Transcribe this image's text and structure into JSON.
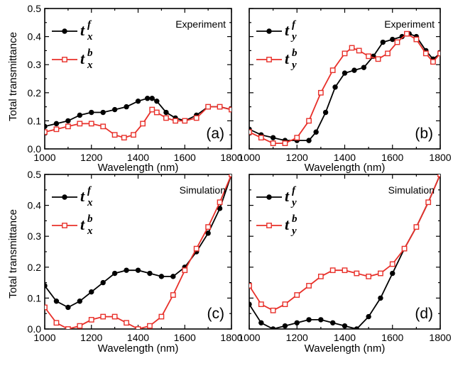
{
  "figure": {
    "ylabel": "Total transmittance",
    "xlabel": "Wavelength (nm)"
  },
  "colors": {
    "front": "#000000",
    "back": "#e8302a"
  },
  "chart_data": [
    {
      "type": "line",
      "panel_label": "(a)",
      "annotation": "Experiment",
      "xlabel": "Wavelength (nm)",
      "ylabel": "Total transmittance",
      "xlim": [
        1000,
        1800
      ],
      "ylim": [
        0.0,
        0.5
      ],
      "xticks": [
        "1000",
        "1200",
        "1400",
        "1600",
        "1800"
      ],
      "yticks": [
        "0.0",
        "0.1",
        "0.2",
        "0.3",
        "0.4",
        "0.5"
      ],
      "legend_placement": "top-left",
      "series": [
        {
          "name": "t_x^f",
          "symbol": "t",
          "sub": "x",
          "sup": "f",
          "marker": "filled-circle",
          "color": "#000000",
          "x": [
            1000,
            1050,
            1100,
            1150,
            1200,
            1250,
            1300,
            1350,
            1400,
            1440,
            1460,
            1480,
            1520,
            1560,
            1600,
            1650,
            1700,
            1750,
            1800
          ],
          "y": [
            0.08,
            0.09,
            0.1,
            0.12,
            0.13,
            0.13,
            0.14,
            0.15,
            0.17,
            0.18,
            0.18,
            0.17,
            0.13,
            0.11,
            0.1,
            0.12,
            0.15,
            0.15,
            0.14
          ]
        },
        {
          "name": "t_x^b",
          "symbol": "t",
          "sub": "x",
          "sup": "b",
          "marker": "open-square",
          "color": "#e8302a",
          "x": [
            1000,
            1050,
            1100,
            1150,
            1200,
            1250,
            1300,
            1340,
            1380,
            1420,
            1460,
            1480,
            1520,
            1560,
            1600,
            1650,
            1700,
            1750,
            1800
          ],
          "y": [
            0.06,
            0.07,
            0.08,
            0.09,
            0.09,
            0.08,
            0.05,
            0.04,
            0.05,
            0.09,
            0.14,
            0.13,
            0.11,
            0.1,
            0.1,
            0.11,
            0.15,
            0.15,
            0.14
          ]
        }
      ]
    },
    {
      "type": "line",
      "panel_label": "(b)",
      "annotation": "Experiment",
      "xlabel": "Wavelength (nm)",
      "xlim": [
        1000,
        1800
      ],
      "ylim": [
        0.0,
        0.5
      ],
      "xticks": [
        "1000",
        "1200",
        "1400",
        "1600",
        "1800"
      ],
      "legend_placement": "top-left",
      "series": [
        {
          "name": "t_y^f",
          "symbol": "t",
          "sub": "y",
          "sup": "f",
          "marker": "filled-circle",
          "color": "#000000",
          "x": [
            1000,
            1050,
            1100,
            1150,
            1200,
            1250,
            1280,
            1320,
            1360,
            1400,
            1440,
            1480,
            1520,
            1560,
            1600,
            1640,
            1670,
            1700,
            1740,
            1770,
            1800
          ],
          "y": [
            0.07,
            0.05,
            0.04,
            0.03,
            0.03,
            0.03,
            0.06,
            0.13,
            0.22,
            0.27,
            0.28,
            0.29,
            0.33,
            0.38,
            0.39,
            0.4,
            0.41,
            0.4,
            0.35,
            0.32,
            0.34
          ]
        },
        {
          "name": "t_y^b",
          "symbol": "t",
          "sub": "y",
          "sup": "b",
          "marker": "open-square",
          "color": "#e8302a",
          "x": [
            1000,
            1050,
            1100,
            1150,
            1200,
            1250,
            1300,
            1350,
            1400,
            1430,
            1460,
            1500,
            1540,
            1580,
            1620,
            1660,
            1700,
            1740,
            1770,
            1800
          ],
          "y": [
            0.06,
            0.04,
            0.02,
            0.02,
            0.04,
            0.1,
            0.2,
            0.28,
            0.34,
            0.36,
            0.35,
            0.33,
            0.32,
            0.34,
            0.38,
            0.41,
            0.39,
            0.34,
            0.31,
            0.34
          ]
        }
      ]
    },
    {
      "type": "line",
      "panel_label": "(c)",
      "annotation": "Simulation",
      "xlabel": "Wavelength (nm)",
      "ylabel": "Total transmittance",
      "xlim": [
        1000,
        1800
      ],
      "ylim": [
        0.0,
        0.5
      ],
      "xticks": [
        "1000",
        "1200",
        "1400",
        "1600",
        "1800"
      ],
      "yticks": [
        "0.0",
        "0.1",
        "0.2",
        "0.3",
        "0.4",
        "0.5"
      ],
      "legend_placement": "top-left",
      "series": [
        {
          "name": "t_x^f",
          "symbol": "t",
          "sub": "x",
          "sup": "f",
          "marker": "filled-circle",
          "color": "#000000",
          "x": [
            1000,
            1050,
            1100,
            1150,
            1200,
            1250,
            1300,
            1350,
            1400,
            1450,
            1500,
            1550,
            1600,
            1650,
            1700,
            1750,
            1800
          ],
          "y": [
            0.14,
            0.09,
            0.07,
            0.09,
            0.12,
            0.15,
            0.18,
            0.19,
            0.19,
            0.18,
            0.17,
            0.17,
            0.2,
            0.25,
            0.31,
            0.39,
            0.5
          ]
        },
        {
          "name": "t_x^b",
          "symbol": "t",
          "sub": "x",
          "sup": "b",
          "marker": "open-square",
          "color": "#e8302a",
          "x": [
            1000,
            1050,
            1100,
            1150,
            1200,
            1250,
            1300,
            1350,
            1400,
            1450,
            1500,
            1550,
            1600,
            1650,
            1700,
            1750,
            1800
          ],
          "y": [
            0.07,
            0.02,
            0.0,
            0.01,
            0.03,
            0.04,
            0.04,
            0.02,
            0.0,
            0.01,
            0.04,
            0.11,
            0.19,
            0.26,
            0.33,
            0.41,
            0.5
          ]
        }
      ]
    },
    {
      "type": "line",
      "panel_label": "(d)",
      "annotation": "Simulation",
      "xlabel": "Wavelength (nm)",
      "xlim": [
        1000,
        1800
      ],
      "ylim": [
        0.0,
        0.5
      ],
      "xticks": [
        "1000",
        "1200",
        "1400",
        "1600",
        "1800"
      ],
      "legend_placement": "top-left",
      "series": [
        {
          "name": "t_y^f",
          "symbol": "t",
          "sub": "y",
          "sup": "f",
          "marker": "filled-circle",
          "color": "#000000",
          "x": [
            1000,
            1050,
            1100,
            1150,
            1200,
            1250,
            1300,
            1350,
            1400,
            1450,
            1500,
            1550,
            1600,
            1650,
            1700,
            1750,
            1800
          ],
          "y": [
            0.08,
            0.02,
            0.0,
            0.01,
            0.02,
            0.03,
            0.03,
            0.02,
            0.01,
            0.0,
            0.04,
            0.1,
            0.18,
            0.26,
            0.33,
            0.41,
            0.5
          ]
        },
        {
          "name": "t_y^b",
          "symbol": "t",
          "sub": "y",
          "sup": "b",
          "marker": "open-square",
          "color": "#e8302a",
          "x": [
            1000,
            1050,
            1100,
            1150,
            1200,
            1250,
            1300,
            1350,
            1400,
            1450,
            1500,
            1550,
            1600,
            1650,
            1700,
            1750,
            1800
          ],
          "y": [
            0.14,
            0.08,
            0.06,
            0.08,
            0.11,
            0.14,
            0.17,
            0.19,
            0.19,
            0.18,
            0.17,
            0.18,
            0.21,
            0.26,
            0.33,
            0.41,
            0.5
          ]
        }
      ]
    }
  ]
}
